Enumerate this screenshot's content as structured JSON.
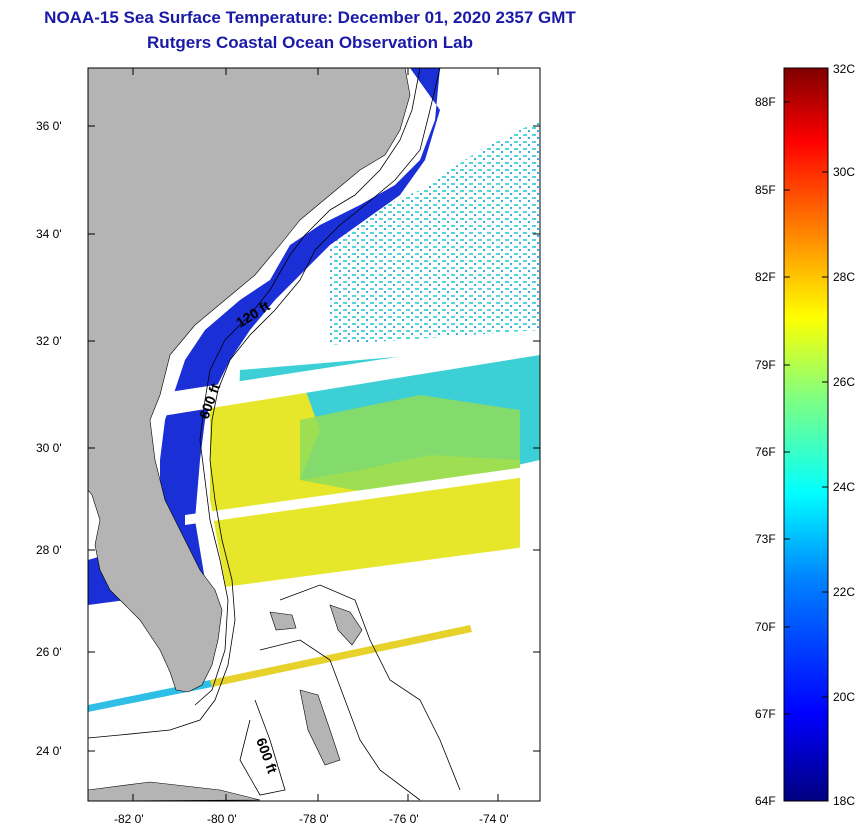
{
  "title": {
    "line1": "NOAA-15 Sea Surface Temperature:  December 01, 2020 2357 GMT",
    "line2": "Rutgers Coastal Ocean Observation Lab"
  },
  "map": {
    "lat_labels": [
      "36 0'",
      "34 0'",
      "32 0'",
      "30 0'",
      "28 0'",
      "26 0'",
      "24 0'"
    ],
    "lon_labels": [
      "-82 0'",
      "-80 0'",
      "-78 0'",
      "-76 0'",
      "-74 0'"
    ],
    "isobaths": [
      "120 ft",
      "600 ft",
      "600 ft"
    ],
    "colors": {
      "land": "#b4b4b4",
      "no_data": "#ffffff",
      "coastal_cold": "#1a2fd6",
      "shelf_warm": "#e8e622",
      "offshore": "#3cd2d2"
    }
  },
  "colorbar": {
    "fahrenheit": [
      "88F",
      "85F",
      "82F",
      "79F",
      "76F",
      "73F",
      "70F",
      "67F",
      "64F"
    ],
    "celsius": [
      "32C",
      "30C",
      "28C",
      "26C",
      "24C",
      "22C",
      "20C",
      "18C"
    ],
    "stops": [
      "#00007f",
      "#0000ff",
      "#0080ff",
      "#00ffff",
      "#80ff80",
      "#ffff00",
      "#ff8000",
      "#ff0000",
      "#7f0000"
    ]
  }
}
